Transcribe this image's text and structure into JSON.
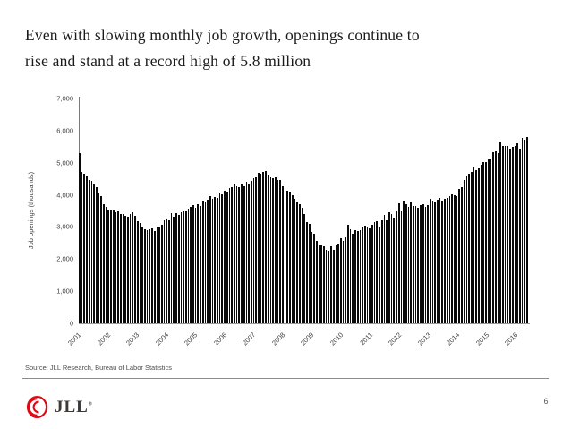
{
  "slide": {
    "title_line1": "Even with slowing monthly job growth, openings continue to",
    "title_line2": "rise and stand at a record high of 5.8 million"
  },
  "chart_data": {
    "type": "bar",
    "title": "",
    "xlabel": "",
    "ylabel": "Job openings (thousands)",
    "ylim": [
      0,
      7000
    ],
    "yticks": [
      0,
      1000,
      2000,
      3000,
      4000,
      5000,
      6000,
      7000
    ],
    "ytick_labels": [
      "0",
      "1,000",
      "2,000",
      "3,000",
      "4,000",
      "5,000",
      "6,000",
      "7,000"
    ],
    "grid": false,
    "legend": "none",
    "bar_color": "#0a0a0a",
    "x_unit": "month",
    "x_range": "Jan 2001 - Jun 2016",
    "year_labels": [
      "2001",
      "2002",
      "2003",
      "2004",
      "2005",
      "2006",
      "2007",
      "2008",
      "2009",
      "2010",
      "2011",
      "2012",
      "2013",
      "2014",
      "2015",
      "2016"
    ],
    "months_per_year": 12,
    "series": [
      {
        "name": "Job openings (thousands)",
        "values": [
          5300,
          4720,
          4660,
          4610,
          4460,
          4440,
          4310,
          4240,
          4050,
          3960,
          3700,
          3630,
          3550,
          3520,
          3540,
          3450,
          3500,
          3410,
          3400,
          3360,
          3330,
          3410,
          3450,
          3350,
          3190,
          3130,
          2980,
          2930,
          2910,
          2940,
          2970,
          2880,
          3010,
          3010,
          3060,
          3210,
          3270,
          3220,
          3430,
          3310,
          3420,
          3380,
          3470,
          3490,
          3500,
          3580,
          3620,
          3670,
          3610,
          3720,
          3640,
          3830,
          3790,
          3850,
          3960,
          3880,
          3940,
          3910,
          4060,
          4010,
          4120,
          4110,
          4220,
          4230,
          4320,
          4270,
          4250,
          4360,
          4280,
          4400,
          4360,
          4440,
          4520,
          4560,
          4680,
          4650,
          4700,
          4750,
          4630,
          4560,
          4520,
          4560,
          4450,
          4470,
          4280,
          4240,
          4120,
          4110,
          3980,
          3890,
          3760,
          3720,
          3600,
          3390,
          3150,
          3090,
          2850,
          2800,
          2560,
          2460,
          2420,
          2400,
          2280,
          2270,
          2390,
          2290,
          2420,
          2480,
          2640,
          2580,
          2680,
          3070,
          2920,
          2780,
          2900,
          2870,
          2890,
          2990,
          3040,
          2980,
          2960,
          3060,
          3150,
          3180,
          2990,
          3210,
          3370,
          3220,
          3470,
          3390,
          3280,
          3500,
          3730,
          3500,
          3830,
          3720,
          3620,
          3770,
          3640,
          3640,
          3590,
          3670,
          3700,
          3620,
          3680,
          3870,
          3830,
          3790,
          3850,
          3910,
          3830,
          3880,
          3900,
          3960,
          4010,
          4000,
          3970,
          4170,
          4240,
          4470,
          4610,
          4670,
          4710,
          4850,
          4760,
          4830,
          4940,
          5030,
          5020,
          5140,
          5100,
          5330,
          5350,
          5310,
          5670,
          5510,
          5530,
          5510,
          5440,
          5500,
          5520,
          5600,
          5450,
          5760,
          5720,
          5800
        ]
      }
    ]
  },
  "footer": {
    "source": "Source: JLL Research, Bureau of Labor Statistics",
    "logo_text": "JLL",
    "logo_reg": "®",
    "logo_color": "#e30613",
    "page_number": "6"
  }
}
